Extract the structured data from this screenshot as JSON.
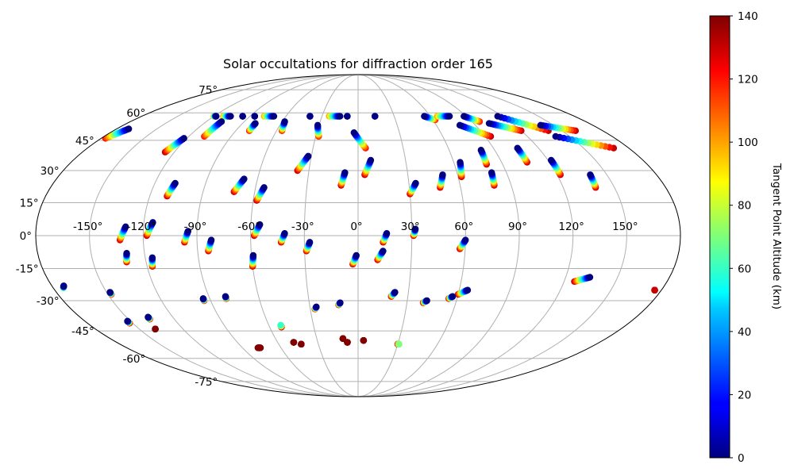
{
  "chart_data": {
    "type": "scatter",
    "projection": "mollweide",
    "title": "Solar occultations for diffraction order 165",
    "colorbar": {
      "label": "Tangent Point Altitude (km)",
      "range": [
        0,
        140
      ],
      "ticks": [
        "0",
        "20",
        "40",
        "60",
        "80",
        "100",
        "120",
        "140"
      ],
      "colormap": "jet"
    },
    "lon_tick_labels": [
      "-150°",
      "-120°",
      "-90°",
      "-60°",
      "-30°",
      "0°",
      "30°",
      "60°",
      "90°",
      "120°",
      "150°"
    ],
    "lat_tick_labels": [
      "75°",
      "60°",
      "45°",
      "30°",
      "15°",
      "0°",
      "-15°",
      "-30°",
      "-45°",
      "-60°",
      "-75°"
    ],
    "occultation_tracks": [
      {
        "lon_start": -177,
        "lat_start": 46,
        "lon_end": -171,
        "lat_end": 51,
        "alt_start": 120,
        "alt_end": 0
      },
      {
        "lon_start": -126,
        "lat_start": 39,
        "lon_end": -122,
        "lat_end": 46,
        "alt_start": 130,
        "alt_end": 0
      },
      {
        "lon_start": -120,
        "lat_start": 58,
        "lon_end": -118,
        "lat_end": 58,
        "alt_start": 100,
        "alt_end": 0
      },
      {
        "lon_start": -112,
        "lat_start": 58,
        "lon_end": -106,
        "lat_end": 58,
        "alt_start": 100,
        "alt_end": 0
      },
      {
        "lon_start": -109,
        "lat_start": 47,
        "lon_end": -108,
        "lat_end": 55,
        "alt_start": 120,
        "alt_end": 0
      },
      {
        "lon_start": -96,
        "lat_start": 58,
        "lon_end": -96,
        "lat_end": 58,
        "alt_start": 100,
        "alt_end": 0
      },
      {
        "lon_start": -86,
        "lat_start": 58,
        "lon_end": -86,
        "lat_end": 58,
        "alt_start": 100,
        "alt_end": 0
      },
      {
        "lon_start": -80,
        "lat_start": 50,
        "lon_end": -80,
        "lat_end": 54,
        "alt_start": 120,
        "alt_end": 0
      },
      {
        "lon_start": -78,
        "lat_start": 58,
        "lon_end": -70,
        "lat_end": 58,
        "alt_start": 100,
        "alt_end": 0
      },
      {
        "lon_start": -56,
        "lat_start": 50,
        "lon_end": -58,
        "lat_end": 55,
        "alt_start": 120,
        "alt_end": 0
      },
      {
        "lon_start": -40,
        "lat_start": 58,
        "lon_end": -40,
        "lat_end": 58,
        "alt_start": 100,
        "alt_end": 0
      },
      {
        "lon_start": -28,
        "lat_start": 47,
        "lon_end": -31,
        "lat_end": 53,
        "alt_start": 120,
        "alt_end": 0
      },
      {
        "lon_start": -24,
        "lat_start": 58,
        "lon_end": -15,
        "lat_end": 58,
        "alt_start": 100,
        "alt_end": 0
      },
      {
        "lon_start": -9,
        "lat_start": 58,
        "lon_end": -9,
        "lat_end": 58,
        "alt_start": 100,
        "alt_end": 0
      },
      {
        "lon_start": 5,
        "lat_start": 41,
        "lon_end": -3,
        "lat_end": 49,
        "alt_start": 120,
        "alt_end": 0
      },
      {
        "lon_start": 14,
        "lat_start": 58,
        "lon_end": 14,
        "lat_end": 58,
        "alt_start": 100,
        "alt_end": 0
      },
      {
        "lon_start": 62,
        "lat_start": 56,
        "lon_end": 55,
        "lat_end": 58,
        "alt_start": 120,
        "alt_end": 0
      },
      {
        "lon_start": 66,
        "lat_start": 58,
        "lon_end": 76,
        "lat_end": 58,
        "alt_start": 100,
        "alt_end": 0
      },
      {
        "lon_start": 94,
        "lat_start": 47,
        "lon_end": 78,
        "lat_end": 53,
        "alt_start": 130,
        "alt_end": 0
      },
      {
        "lon_start": 96,
        "lat_start": 55,
        "lon_end": 88,
        "lat_end": 58,
        "alt_start": 120,
        "alt_end": 0
      },
      {
        "lon_start": 120,
        "lat_start": 50,
        "lon_end": 102,
        "lat_end": 54,
        "alt_start": 130,
        "alt_end": 0
      },
      {
        "lon_start": 140,
        "lat_start": 50,
        "lon_end": 116,
        "lat_end": 58,
        "alt_start": 130,
        "alt_end": 0
      },
      {
        "lon_start": 160,
        "lat_start": 50,
        "lon_end": 140,
        "lat_end": 53,
        "alt_start": 130,
        "alt_end": 0
      },
      {
        "lon_start": 170,
        "lat_start": 41,
        "lon_end": 140,
        "lat_end": 47,
        "alt_start": 130,
        "alt_end": 0
      },
      {
        "lon_start": -110,
        "lat_start": 18,
        "lon_end": -108,
        "lat_end": 24,
        "alt_start": 130,
        "alt_end": 0
      },
      {
        "lon_start": -72,
        "lat_start": 20,
        "lon_end": -68,
        "lat_end": 26,
        "alt_start": 130,
        "alt_end": 0
      },
      {
        "lon_start": -58,
        "lat_start": 16,
        "lon_end": -55,
        "lat_end": 22,
        "alt_start": 130,
        "alt_end": 0
      },
      {
        "lon_start": -37,
        "lat_start": 30,
        "lon_end": -32,
        "lat_end": 37,
        "alt_start": 130,
        "alt_end": 0
      },
      {
        "lon_start": -10,
        "lat_start": 23,
        "lon_end": -8,
        "lat_end": 29,
        "alt_start": 130,
        "alt_end": 0
      },
      {
        "lon_start": 4,
        "lat_start": 28,
        "lon_end": 8,
        "lat_end": 35,
        "alt_start": 130,
        "alt_end": 0
      },
      {
        "lon_start": 30,
        "lat_start": 19,
        "lon_end": 34,
        "lat_end": 24,
        "alt_start": 130,
        "alt_end": 0
      },
      {
        "lon_start": 48,
        "lat_start": 22,
        "lon_end": 51,
        "lat_end": 28,
        "alt_start": 130,
        "alt_end": 0
      },
      {
        "lon_start": 62,
        "lat_start": 27,
        "lon_end": 64,
        "lat_end": 34,
        "alt_start": 130,
        "alt_end": 0
      },
      {
        "lon_start": 80,
        "lat_start": 23,
        "lon_end": 81,
        "lat_end": 29,
        "alt_start": 130,
        "alt_end": 0
      },
      {
        "lon_start": 80,
        "lat_start": 33,
        "lon_end": 81,
        "lat_end": 40,
        "alt_start": 130,
        "alt_end": 0
      },
      {
        "lon_start": 106,
        "lat_start": 34,
        "lon_end": 106,
        "lat_end": 41,
        "alt_start": 130,
        "alt_end": 0
      },
      {
        "lon_start": 122,
        "lat_start": 28,
        "lon_end": 122,
        "lat_end": 35,
        "alt_start": 130,
        "alt_end": 0
      },
      {
        "lon_start": 139,
        "lat_start": 22,
        "lon_end": 140,
        "lat_end": 28,
        "alt_start": 130,
        "alt_end": 0
      },
      {
        "lon_start": -133,
        "lat_start": -2,
        "lon_end": -130,
        "lat_end": 4,
        "alt_start": 130,
        "alt_end": 0
      },
      {
        "lon_start": -118,
        "lat_start": 0,
        "lon_end": -115,
        "lat_end": 6,
        "alt_start": 130,
        "alt_end": 0
      },
      {
        "lon_start": -97,
        "lat_start": -3,
        "lon_end": -95,
        "lat_end": 2,
        "alt_start": 130,
        "alt_end": 0
      },
      {
        "lon_start": -84,
        "lat_start": -7,
        "lon_end": -82,
        "lat_end": -2,
        "alt_start": 130,
        "alt_end": 0
      },
      {
        "lon_start": -58,
        "lat_start": 0,
        "lon_end": -55,
        "lat_end": 5,
        "alt_start": 130,
        "alt_end": 0
      },
      {
        "lon_start": -43,
        "lat_start": -3,
        "lon_end": -41,
        "lat_end": 1,
        "alt_start": 130,
        "alt_end": 0
      },
      {
        "lon_start": -29,
        "lat_start": -7,
        "lon_end": -27,
        "lat_end": -3,
        "alt_start": 130,
        "alt_end": 0
      },
      {
        "lon_start": 14,
        "lat_start": -3,
        "lon_end": 16,
        "lat_end": 1,
        "alt_start": 130,
        "alt_end": 0
      },
      {
        "lon_start": 31,
        "lat_start": 0,
        "lon_end": 32,
        "lat_end": 3,
        "alt_start": 130,
        "alt_end": 0
      },
      {
        "lon_start": 57,
        "lat_start": -6,
        "lon_end": 60,
        "lat_end": -2,
        "alt_start": 130,
        "alt_end": 0
      },
      {
        "lon_start": -131,
        "lat_start": -12,
        "lon_end": -130,
        "lat_end": -8,
        "alt_start": 130,
        "alt_end": 0
      },
      {
        "lon_start": -117,
        "lat_start": -14,
        "lon_end": -116,
        "lat_end": -10,
        "alt_start": 130,
        "alt_end": 0
      },
      {
        "lon_start": -60,
        "lat_start": -14,
        "lon_end": -59,
        "lat_end": -9,
        "alt_start": 130,
        "alt_end": 0
      },
      {
        "lon_start": -3,
        "lat_start": -13,
        "lon_end": -1,
        "lat_end": -9,
        "alt_start": 130,
        "alt_end": 0
      },
      {
        "lon_start": 11,
        "lat_start": -11,
        "lon_end": 14,
        "lat_end": -7,
        "alt_start": 130,
        "alt_end": 0
      },
      {
        "lon_start": 126,
        "lat_start": -21,
        "lon_end": 134,
        "lat_end": -19,
        "alt_start": 130,
        "alt_end": 0
      },
      {
        "lon_start": -174,
        "lat_start": -24,
        "lon_end": -173,
        "lat_end": -23,
        "alt_start": 80,
        "alt_end": 0
      },
      {
        "lon_start": -148,
        "lat_start": -27,
        "lon_end": -148,
        "lat_end": -26,
        "alt_start": 130,
        "alt_end": 0
      },
      {
        "lon_start": -94,
        "lat_start": -30,
        "lon_end": -94,
        "lat_end": -29,
        "alt_start": 130,
        "alt_end": 0
      },
      {
        "lon_start": -80,
        "lat_start": -29,
        "lon_end": -80,
        "lat_end": -28,
        "alt_start": 130,
        "alt_end": 0
      },
      {
        "lon_start": 20,
        "lat_start": -28,
        "lon_end": 22,
        "lat_end": -26,
        "alt_start": 130,
        "alt_end": 0
      },
      {
        "lon_start": 60,
        "lat_start": -27,
        "lon_end": 65,
        "lat_end": -25,
        "alt_start": 130,
        "alt_end": 0
      },
      {
        "lon_start": 55,
        "lat_start": -29,
        "lon_end": 57,
        "lat_end": -28,
        "alt_start": 130,
        "alt_end": 0
      },
      {
        "lon_start": 40,
        "lat_start": -31,
        "lon_end": 42,
        "lat_end": -30,
        "alt_start": 130,
        "alt_end": 0
      },
      {
        "lon_start": -12,
        "lat_start": -32,
        "lon_end": -11,
        "lat_end": -31,
        "alt_start": 130,
        "alt_end": 0
      },
      {
        "lon_start": -27,
        "lat_start": -34,
        "lon_end": -26,
        "lat_end": -33,
        "alt_start": 130,
        "alt_end": 0
      },
      {
        "lon_start": 176,
        "lat_start": -25,
        "lon_end": 176,
        "lat_end": -25,
        "alt_start": 130,
        "alt_end": 130
      },
      {
        "lon_start": -152,
        "lat_start": -41,
        "lon_end": -152,
        "lat_end": -40,
        "alt_start": 140,
        "alt_end": 0
      },
      {
        "lon_start": -136,
        "lat_start": -39,
        "lon_end": -136,
        "lat_end": -38,
        "alt_start": 130,
        "alt_end": 0
      },
      {
        "lon_start": -139,
        "lat_start": -44,
        "lon_end": -139,
        "lat_end": -44,
        "alt_start": 140,
        "alt_end": 140
      },
      {
        "lon_start": -52,
        "lat_start": -43,
        "lon_end": -52,
        "lat_end": -42,
        "alt_start": 140,
        "alt_end": 60
      },
      {
        "lon_start": -78,
        "lat_start": -54,
        "lon_end": -76,
        "lat_end": -54,
        "alt_start": 140,
        "alt_end": 140
      },
      {
        "lon_start": -48,
        "lat_start": -51,
        "lon_end": -48,
        "lat_end": -51,
        "alt_start": 140,
        "alt_end": 140
      },
      {
        "lon_start": -43,
        "lat_start": -52,
        "lon_end": -43,
        "lat_end": -52,
        "alt_start": 140,
        "alt_end": 140
      },
      {
        "lon_start": -11,
        "lat_start": -49,
        "lon_end": -11,
        "lat_end": -49,
        "alt_start": 140,
        "alt_end": 140
      },
      {
        "lon_start": -8,
        "lat_start": -51,
        "lon_end": -8,
        "lat_end": -51,
        "alt_start": 140,
        "alt_end": 140
      },
      {
        "lon_start": 4,
        "lat_start": -50,
        "lon_end": 4,
        "lat_end": -50,
        "alt_start": 140,
        "alt_end": 140
      },
      {
        "lon_start": 30,
        "lat_start": -52,
        "lon_end": 31,
        "lat_end": -52,
        "alt_start": 140,
        "alt_end": 70
      }
    ]
  }
}
